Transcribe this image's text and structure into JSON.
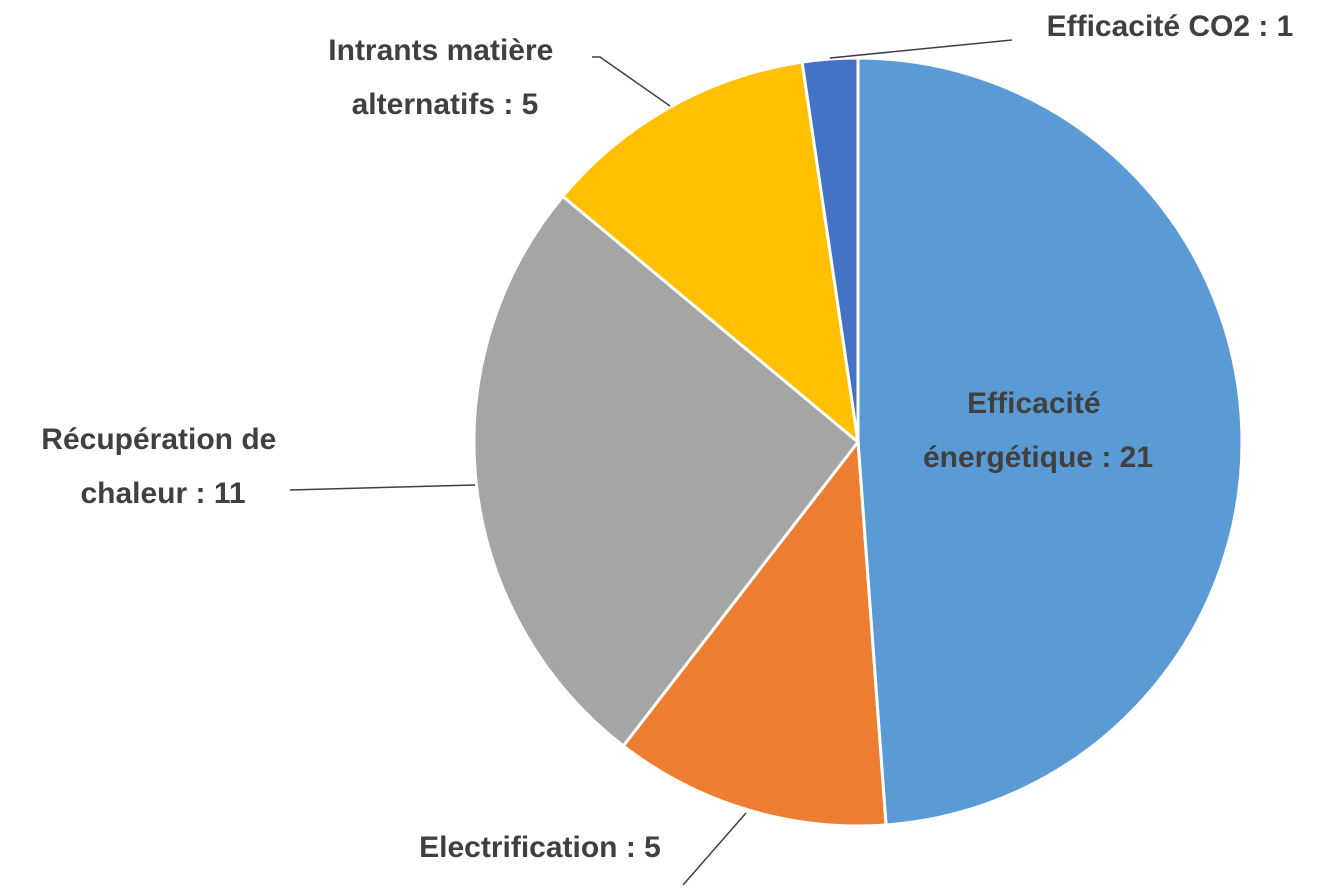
{
  "chart_data": {
    "type": "pie",
    "labels": [
      "Efficacité énergétique : 21",
      "Electrification : 5",
      "Récupération de chaleur : 11",
      "Intrants matière alternatifs : 5",
      "Efficacité CO2 : 1"
    ],
    "values": [
      21,
      5,
      11,
      5,
      1
    ],
    "colors": [
      "#5b9bd5",
      "#ed7d31",
      "#a5a5a5",
      "#ffc000",
      "#4472c4"
    ]
  }
}
